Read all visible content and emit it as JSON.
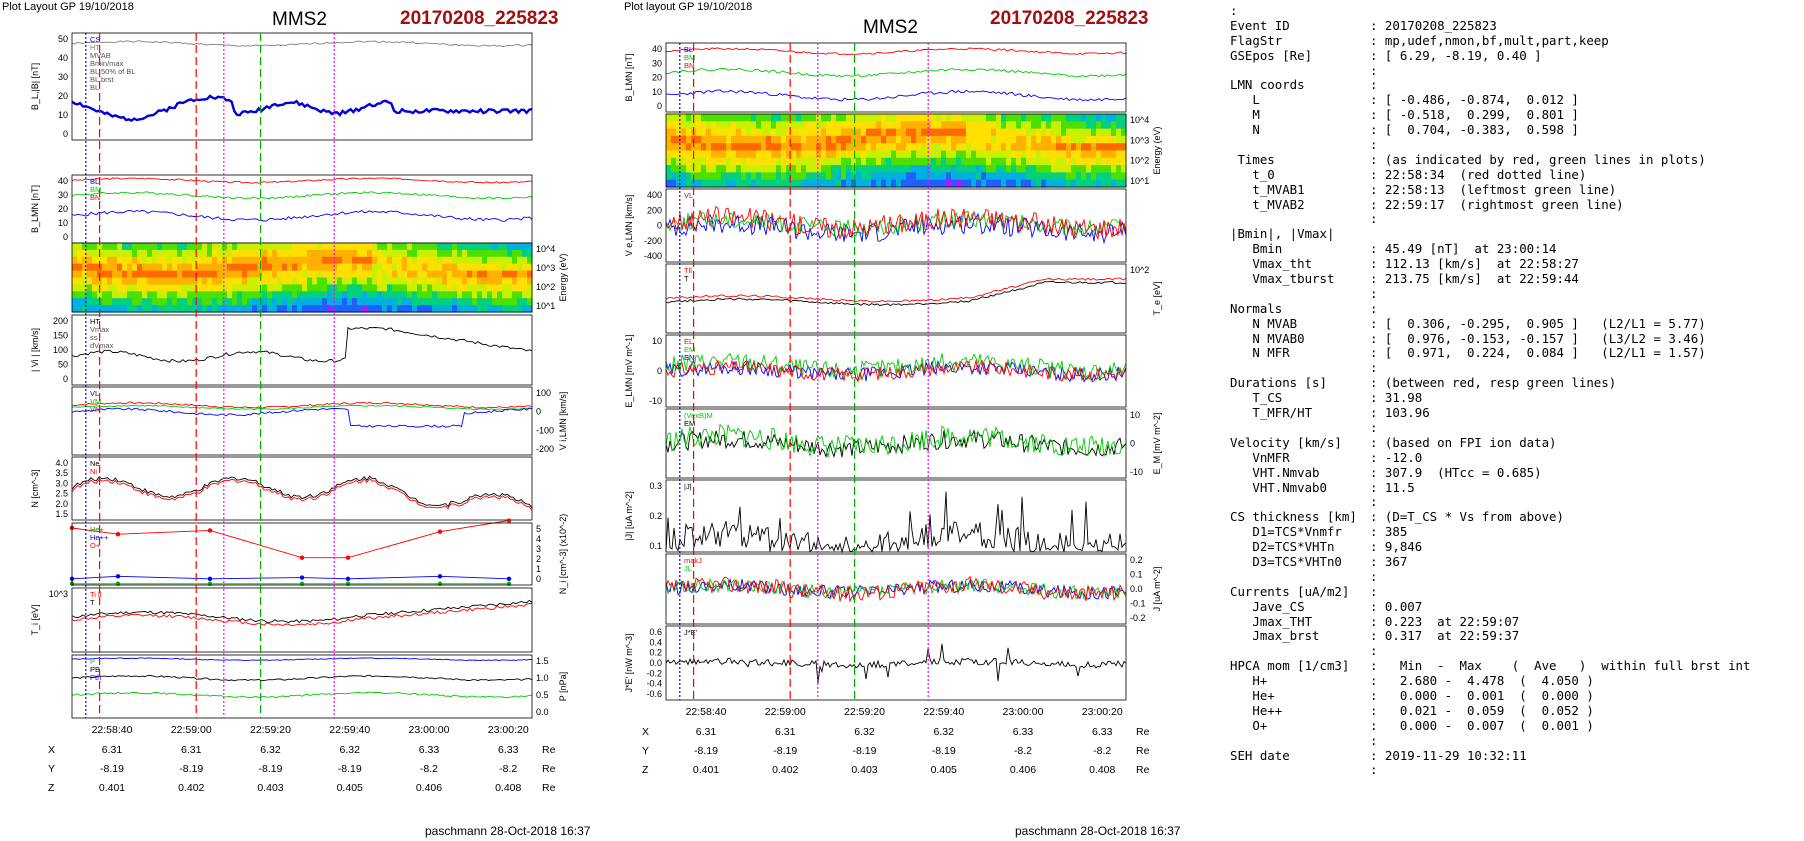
{
  "figure_left": {
    "header": "Plot Layout GP 19/10/2018",
    "spacecraft": "MMS2",
    "event": "20170208_225823",
    "footer": "paschmann 28-Oct-2018 16:37",
    "time_ticks": [
      "22:58:40",
      "22:59:00",
      "22:59:20",
      "22:59:40",
      "23:00:00",
      "23:00:20"
    ],
    "ephem": {
      "rows": [
        {
          "label": "X",
          "values": [
            "6.31",
            "6.31",
            "6.32",
            "6.32",
            "6.33",
            "6.33"
          ],
          "unit": "Re"
        },
        {
          "label": "Y",
          "values": [
            "-8.19",
            "-8.19",
            "-8.19",
            "-8.19",
            "-8.2",
            "-8.2"
          ],
          "unit": "Re"
        },
        {
          "label": "Z",
          "values": [
            "0.401",
            "0.402",
            "0.403",
            "0.405",
            "0.406",
            "0.408"
          ],
          "unit": "Re"
        }
      ]
    }
  },
  "figure_right": {
    "header": "Plot layout GP 19/10/2018",
    "spacecraft": "MMS2",
    "event": "20170208_225823",
    "footer": "paschmann 28-Oct-2018 16:37",
    "time_ticks": [
      "22:58:40",
      "22:59:00",
      "22:59:20",
      "22:59:40",
      "23:00:00",
      "23:00:20"
    ],
    "ephem": {
      "rows": [
        {
          "label": "X",
          "values": [
            "6.31",
            "6.31",
            "6.32",
            "6.32",
            "6.33",
            "6.33"
          ],
          "unit": "Re"
        },
        {
          "label": "Y",
          "values": [
            "-8.19",
            "-8.19",
            "-8.19",
            "-8.19",
            "-8.2",
            "-8.2"
          ],
          "unit": "Re"
        },
        {
          "label": "Z",
          "values": [
            "0.401",
            "0.402",
            "0.403",
            "0.405",
            "0.406",
            "0.408"
          ],
          "unit": "Re"
        }
      ]
    }
  },
  "chart_data": [
    {
      "id": "L1",
      "type": "line",
      "ylabel": "B_L,|B| [nT]",
      "ylim": [
        0,
        50
      ],
      "yticks": [
        "50",
        "40",
        "30",
        "20",
        "10",
        "0"
      ],
      "legend": [
        "CS",
        "HT",
        "MVAB",
        "Bmin/max",
        "BL 50% of BL",
        "BL brst",
        "BL"
      ],
      "series": [
        {
          "name": "|B|",
          "color": "#808080",
          "base": 45,
          "amp": 2,
          "seed": 1
        },
        {
          "name": "BL",
          "color": "#0000dd",
          "base": 15,
          "amp": 5,
          "seed": 2,
          "shape": "bl"
        }
      ]
    },
    {
      "id": "L2",
      "type": "line",
      "ylabel": "B_LMN [nT]",
      "ylim": [
        -10,
        40
      ],
      "yticks": [
        "40",
        "30",
        "20",
        "10",
        "0"
      ],
      "legend": [
        "BL",
        "BM",
        "BN"
      ],
      "series": [
        {
          "name": "BL",
          "color": "#ff0000",
          "base": 36,
          "amp": 3,
          "seed": 3
        },
        {
          "name": "BM",
          "color": "#00cc00",
          "base": 25,
          "amp": 4,
          "seed": 4
        },
        {
          "name": "BN",
          "color": "#0000ff",
          "base": 10,
          "amp": 6,
          "seed": 5
        }
      ]
    },
    {
      "id": "L3",
      "type": "heatmap",
      "ylabel": "Energy (eV)",
      "yticks": [
        "10^4",
        "10^3",
        "10^2",
        "10^1"
      ]
    },
    {
      "id": "L4",
      "type": "line",
      "ylabel": "| Vi | [km/s]",
      "ylim": [
        0,
        220
      ],
      "yticks": [
        "200",
        "150",
        "100",
        "50",
        "0"
      ],
      "legend": [
        "HT",
        "Vmax",
        "ss",
        "dVmax"
      ],
      "series": [
        {
          "name": "|Vi|",
          "color": "#000000",
          "base": 90,
          "amp": 25,
          "seed": 6,
          "shape": "vi"
        }
      ]
    },
    {
      "id": "L5",
      "type": "line",
      "ylabel": "V i,LMN [km/s]",
      "ylim": [
        -200,
        100
      ],
      "yticks": [
        "100",
        "0",
        "-100",
        "-200"
      ],
      "legend": [
        "VL",
        "VM",
        "VN"
      ],
      "series": [
        {
          "name": "VL",
          "color": "#ff0000",
          "base": 20,
          "amp": 20,
          "seed": 7
        },
        {
          "name": "VM",
          "color": "#00cc00",
          "base": 10,
          "amp": 15,
          "seed": 8
        },
        {
          "name": "VN",
          "color": "#0000ff",
          "base": -10,
          "amp": 25,
          "seed": 9,
          "shape": "vn"
        }
      ]
    },
    {
      "id": "L6",
      "type": "line",
      "ylabel": "N [cm^-3]",
      "ylim": [
        1.3,
        4.0
      ],
      "yticks": [
        "4.0",
        "3.5",
        "3.0",
        "2.5",
        "2.0",
        "1.5"
      ],
      "legend": [
        "Ne",
        "Ni"
      ],
      "series": [
        {
          "name": "Ne",
          "color": "#ff0000",
          "base": 2.6,
          "amp": 0.5,
          "seed": 10,
          "shape": "n"
        },
        {
          "name": "Ni",
          "color": "#000000",
          "base": 2.7,
          "amp": 0.5,
          "seed": 10,
          "shape": "n"
        }
      ]
    },
    {
      "id": "L7",
      "type": "line",
      "ylabel": "N_i [cm^-3] (x10^-2)",
      "ylim": [
        0,
        5
      ],
      "yticks": [
        "5",
        "4",
        "3",
        "2",
        "1",
        "0"
      ],
      "legend": [
        "He+",
        "He++",
        "O+"
      ],
      "series": [
        {
          "name": "He++",
          "color": "#ff0000",
          "x": [
            0,
            0.1,
            0.3,
            0.5,
            0.6,
            0.8,
            0.95
          ],
          "values": [
            4.6,
            4.1,
            4.4,
            2.2,
            2.2,
            4.3,
            5.2
          ]
        },
        {
          "name": "O+",
          "color": "#0000ff",
          "x": [
            0,
            0.1,
            0.3,
            0.5,
            0.6,
            0.8,
            0.95
          ],
          "values": [
            0.5,
            0.7,
            0.5,
            0.6,
            0.5,
            0.7,
            0.5
          ]
        },
        {
          "name": "He+",
          "color": "#00aa00",
          "x": [
            0,
            0.1,
            0.3,
            0.5,
            0.6,
            0.8,
            0.95
          ],
          "values": [
            0.1,
            0.1,
            0.1,
            0.1,
            0.1,
            0.1,
            0.1
          ]
        }
      ]
    },
    {
      "id": "L8",
      "type": "line",
      "ylabel": "T_i [eV]",
      "yticks": [
        "10^3"
      ],
      "legend": [
        "Ti ll",
        "T"
      ],
      "series": [
        {
          "name": "Ti",
          "color": "#000000",
          "base": 0.55,
          "amp": 0.12,
          "seed": 11,
          "shape": "ti"
        },
        {
          "name": "Ti ll",
          "color": "#ff0000",
          "base": 0.5,
          "amp": 0.12,
          "seed": 12,
          "shape": "ti"
        }
      ]
    },
    {
      "id": "L9",
      "type": "line",
      "ylabel": "P [nPa]",
      "ylim": [
        0,
        1.5
      ],
      "yticks": [
        "1.5",
        "1.0",
        "0.5",
        "0.0"
      ],
      "legend": [
        "P",
        "PB",
        "Pth"
      ],
      "series": [
        {
          "name": "P",
          "color": "#0000ff",
          "base": 1.4,
          "amp": 0.05,
          "seed": 13
        },
        {
          "name": "PB",
          "color": "#000000",
          "base": 0.95,
          "amp": 0.1,
          "seed": 14
        },
        {
          "name": "Pth",
          "color": "#00cc00",
          "base": 0.55,
          "amp": 0.1,
          "seed": 15
        }
      ]
    },
    {
      "id": "R1",
      "type": "line",
      "ylabel": "B_LMN [nT]",
      "ylim": [
        0,
        42
      ],
      "yticks": [
        "40",
        "30",
        "20",
        "10",
        "0"
      ],
      "legend": [
        "BL",
        "BM",
        "BN"
      ],
      "series": [
        {
          "name": "BL",
          "color": "#ff0000",
          "base": 37,
          "amp": 3,
          "seed": 21
        },
        {
          "name": "BM",
          "color": "#00cc00",
          "base": 24,
          "amp": 4,
          "seed": 22
        },
        {
          "name": "BN",
          "color": "#0000ff",
          "base": 10,
          "amp": 5,
          "seed": 23
        }
      ]
    },
    {
      "id": "R2",
      "type": "heatmap",
      "ylabel": "Energy (eV)",
      "yticks": [
        "10^4",
        "10^3",
        "10^2",
        "10^1"
      ]
    },
    {
      "id": "R3",
      "type": "line",
      "ylabel": "V e,LMN [km/s]",
      "ylim": [
        -500,
        500
      ],
      "yticks": [
        "400",
        "200",
        "0",
        "-200",
        "-400"
      ],
      "legend": [
        "VL"
      ],
      "series": [
        {
          "name": "VN",
          "color": "#0000ff",
          "base": -40,
          "amp": 140,
          "seed": 24,
          "noise": 1
        },
        {
          "name": "VM",
          "color": "#00cc00",
          "base": 20,
          "amp": 120,
          "seed": 25,
          "noise": 1
        },
        {
          "name": "VL",
          "color": "#ff0000",
          "base": 40,
          "amp": 150,
          "seed": 26,
          "noise": 1
        }
      ]
    },
    {
      "id": "R4",
      "type": "line",
      "ylabel": "T_e [eV]",
      "yticks": [
        "10^2"
      ],
      "legend": [
        "Tll",
        "T"
      ],
      "series": [
        {
          "name": "T",
          "color": "#000000",
          "base": 0.45,
          "amp": 0.08,
          "seed": 27,
          "shape": "te"
        },
        {
          "name": "Tll",
          "color": "#ff0000",
          "base": 0.5,
          "amp": 0.08,
          "seed": 28,
          "shape": "te"
        }
      ]
    },
    {
      "id": "R5",
      "type": "line",
      "ylabel": "E_LMN [mV m^-1]",
      "ylim": [
        -15,
        15
      ],
      "yticks": [
        "10",
        "0",
        "-10"
      ],
      "legend": [
        "EL",
        "EM",
        "EN"
      ],
      "series": [
        {
          "name": "EN",
          "color": "#0000ff",
          "base": 0,
          "amp": 3,
          "seed": 29,
          "noise": 1
        },
        {
          "name": "EM",
          "color": "#00cc00",
          "base": 2,
          "amp": 4,
          "seed": 30,
          "noise": 1
        },
        {
          "name": "EL",
          "color": "#ff0000",
          "base": 0,
          "amp": 3,
          "seed": 31,
          "noise": 1
        }
      ]
    },
    {
      "id": "R6",
      "type": "line",
      "ylabel": "E_M [mV m^-2]",
      "ylim": [
        -15,
        15
      ],
      "yticks": [
        "10",
        "0",
        "-10"
      ],
      "legend": [
        "(VexB)M",
        "EM"
      ],
      "series": [
        {
          "name": "(VexB)M",
          "color": "#000000",
          "base": 0,
          "amp": 4,
          "seed": 32,
          "noise": 1
        },
        {
          "name": "EM",
          "color": "#00cc00",
          "base": 1,
          "amp": 5,
          "seed": 33,
          "noise": 1
        }
      ]
    },
    {
      "id": "R7",
      "type": "line",
      "ylabel": "|J| [uA m^-2]",
      "ylim": [
        0,
        0.32
      ],
      "yticks": [
        "0.3",
        "0.2",
        "0.1"
      ],
      "legend": [
        "|J|"
      ],
      "series": [
        {
          "name": "|J|",
          "color": "#000000",
          "base": 0.05,
          "amp": 0.06,
          "seed": 34,
          "noise": 2
        }
      ]
    },
    {
      "id": "R8",
      "type": "line",
      "ylabel": "J [uA m^-2]",
      "ylim": [
        -0.25,
        0.25
      ],
      "yticks": [
        "0.2",
        "0.1",
        "0.0",
        "-0.1",
        "-0.2"
      ],
      "legend": [
        "makJ",
        "JL"
      ],
      "series": [
        {
          "name": "JN",
          "color": "#0000ff",
          "base": 0,
          "amp": 0.05,
          "seed": 35,
          "noise": 1
        },
        {
          "name": "JM",
          "color": "#00cc00",
          "base": 0,
          "amp": 0.05,
          "seed": 36,
          "noise": 1
        },
        {
          "name": "JL",
          "color": "#ff0000",
          "base": 0,
          "amp": 0.06,
          "seed": 37,
          "noise": 1
        }
      ]
    },
    {
      "id": "R9",
      "type": "line",
      "ylabel": "J*E' [nW m^-3]",
      "ylim": [
        -0.65,
        0.65
      ],
      "yticks": [
        "0.6",
        "0.4",
        "0.2",
        "0.0",
        "-0.2",
        "-0.4",
        "-0.6"
      ],
      "legend": [
        "J*E'"
      ],
      "series": [
        {
          "name": "J*E'",
          "color": "#000000",
          "base": 0,
          "amp": 0.06,
          "seed": 38,
          "noise": 3
        }
      ]
    }
  ],
  "info": {
    "lines": [
      {
        "k": ":",
        "v": ""
      },
      {
        "k": "Event ID",
        "v": ": 20170208_225823"
      },
      {
        "k": "FlagStr",
        "v": ": mp,udef,nmon,bf,mult,part,keep"
      },
      {
        "k": "GSEpos [Re]",
        "v": ": [ 6.29, -8.19, 0.40 ]"
      },
      {
        "k": "",
        "v": ":"
      },
      {
        "k": "LMN coords",
        "v": ":"
      },
      {
        "k": "   L",
        "v": ": [ -0.486, -0.874,  0.012 ]"
      },
      {
        "k": "   M",
        "v": ": [ -0.518,  0.299,  0.801 ]"
      },
      {
        "k": "   N",
        "v": ": [  0.704, -0.383,  0.598 ]"
      },
      {
        "k": "",
        "v": ":"
      },
      {
        "k": " Times",
        "v": ": (as indicated by red, green lines in plots)"
      },
      {
        "k": "   t_0",
        "v": ": 22:58:34  (red dotted line)"
      },
      {
        "k": "   t_MVAB1",
        "v": ": 22:58:13  (leftmost green line)"
      },
      {
        "k": "   t_MVAB2",
        "v": ": 22:59:17  (rightmost green line)"
      },
      {
        "k": "",
        "v": ":"
      },
      {
        "k": "|Bmin|, |Vmax|",
        "v": ""
      },
      {
        "k": "   Bmin",
        "v": ": 45.49 [nT]  at 23:00:14"
      },
      {
        "k": "   Vmax_tht",
        "v": ": 112.13 [km/s]  at 22:58:27"
      },
      {
        "k": "   Vmax_tburst",
        "v": ": 213.75 [km/s]  at 22:59:44"
      },
      {
        "k": "",
        "v": ":"
      },
      {
        "k": "Normals",
        "v": ":"
      },
      {
        "k": "   N MVAB",
        "v": ": [  0.306, -0.295,  0.905 ]   (L2/L1 = 5.77)"
      },
      {
        "k": "   N MVAB0",
        "v": ": [  0.976, -0.153, -0.157 ]   (L3/L2 = 3.46)"
      },
      {
        "k": "   N MFR",
        "v": ": [  0.971,  0.224,  0.084 ]   (L2/L1 = 1.57)"
      },
      {
        "k": "",
        "v": ":"
      },
      {
        "k": "Durations [s]",
        "v": ": (between red, resp green lines)"
      },
      {
        "k": "   T_CS",
        "v": ": 31.98"
      },
      {
        "k": "   T_MFR/HT",
        "v": ": 103.96"
      },
      {
        "k": "",
        "v": ":"
      },
      {
        "k": "Velocity [km/s]",
        "v": ": (based on FPI ion data)"
      },
      {
        "k": "   VnMFR",
        "v": ": -12.0"
      },
      {
        "k": "   VHT.Nmvab",
        "v": ": 307.9  (HTcc = 0.685)"
      },
      {
        "k": "   VHT.Nmvab0",
        "v": ": 11.5"
      },
      {
        "k": "",
        "v": ":"
      },
      {
        "k": "CS thickness [km]",
        "v": ": (D=T_CS * Vs from above)"
      },
      {
        "k": "   D1=TCS*Vnmfr",
        "v": ": 385"
      },
      {
        "k": "   D2=TCS*VHTn",
        "v": ": 9,846"
      },
      {
        "k": "   D3=TCS*VHTn0",
        "v": ": 367"
      },
      {
        "k": "",
        "v": ":"
      },
      {
        "k": "Currents [uA/m2]",
        "v": ":"
      },
      {
        "k": "   Jave_CS",
        "v": ": 0.007"
      },
      {
        "k": "   Jmax_THT",
        "v": ": 0.223  at 22:59:07"
      },
      {
        "k": "   Jmax_brst",
        "v": ": 0.317  at 22:59:37"
      },
      {
        "k": "",
        "v": ":"
      },
      {
        "k": "HPCA mom [1/cm3]",
        "v": ":   Min  -  Max    (  Ave   )  within full brst int"
      },
      {
        "k": "   H+",
        "v": ":   2.680 -  4.478  (  4.050 )"
      },
      {
        "k": "   He+",
        "v": ":   0.000 -  0.001  (  0.000 )"
      },
      {
        "k": "   He++",
        "v": ":   0.021 -  0.059  (  0.052 )"
      },
      {
        "k": "   O+",
        "v": ":   0.000 -  0.007  (  0.001 )"
      },
      {
        "k": "",
        "v": ":"
      },
      {
        "k": "SEH date",
        "v": ": 2019-11-29 10:32:11"
      },
      {
        "k": "",
        "v": ":"
      }
    ]
  }
}
